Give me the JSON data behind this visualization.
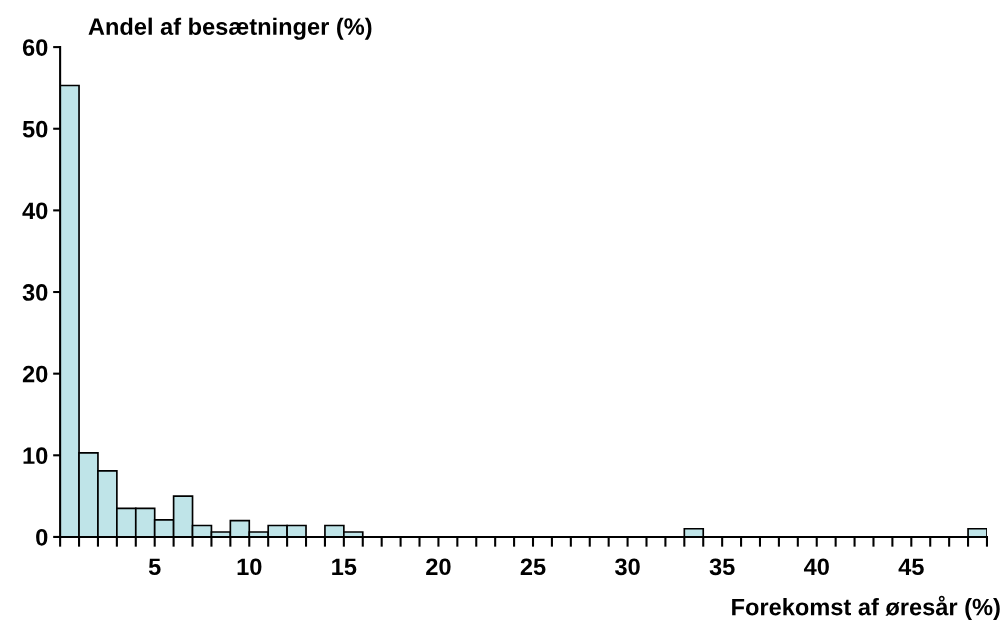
{
  "chart_data": {
    "type": "histogram",
    "xlabel": "Forekomst af øresår (%)",
    "ylabel": "Andel af besætninger (%)",
    "bins": [
      0,
      1,
      2,
      3,
      4,
      5,
      6,
      7,
      8,
      9,
      10,
      11,
      12,
      13,
      14,
      15,
      16,
      17,
      18,
      19,
      20,
      21,
      22,
      23,
      24,
      25,
      26,
      27,
      28,
      29,
      30,
      31,
      32,
      33,
      34,
      35,
      36,
      37,
      38,
      39,
      40,
      41,
      42,
      43,
      44,
      45,
      46,
      47,
      48,
      49
    ],
    "values": [
      55.3,
      10.3,
      8.1,
      3.5,
      3.5,
      2.1,
      5.0,
      1.4,
      0.6,
      2.0,
      0.6,
      1.4,
      1.4,
      0,
      1.4,
      0.6,
      0,
      0,
      0,
      0,
      0,
      0,
      0,
      0,
      0,
      0,
      0,
      0,
      0,
      0,
      0,
      0,
      0,
      1.0,
      0,
      0,
      0,
      0,
      0,
      0,
      0,
      0,
      0,
      0,
      0,
      0,
      0,
      0,
      1.0
    ],
    "color": "#bfe4e8",
    "xlim": [
      0,
      49
    ],
    "ylim": [
      0,
      60
    ],
    "yticks": [
      0,
      10,
      20,
      30,
      40,
      50,
      60
    ],
    "xticks": [
      {
        "value": 0,
        "label": null
      },
      {
        "value": 1,
        "label": null
      },
      {
        "value": 2,
        "label": null
      },
      {
        "value": 3,
        "label": null
      },
      {
        "value": 4,
        "label": null
      },
      5,
      {
        "value": 6,
        "label": null
      },
      {
        "value": 7,
        "label": null
      },
      {
        "value": 8,
        "label": null
      },
      {
        "value": 9,
        "label": null
      },
      10,
      {
        "value": 11,
        "label": null
      },
      {
        "value": 12,
        "label": null
      },
      {
        "value": 13,
        "label": null
      },
      {
        "value": 14,
        "label": null
      },
      15,
      {
        "value": 16,
        "label": null
      },
      {
        "value": 17,
        "label": null
      },
      {
        "value": 18,
        "label": null
      },
      {
        "value": 19,
        "label": null
      },
      20,
      {
        "value": 21,
        "label": null
      },
      {
        "value": 22,
        "label": null
      },
      {
        "value": 23,
        "label": null
      },
      {
        "value": 24,
        "label": null
      },
      25,
      {
        "value": 26,
        "label": null
      },
      {
        "value": 27,
        "label": null
      },
      {
        "value": 28,
        "label": null
      },
      {
        "value": 29,
        "label": null
      },
      30,
      {
        "value": 31,
        "label": null
      },
      {
        "value": 32,
        "label": null
      },
      {
        "value": 33,
        "label": null
      },
      {
        "value": 34,
        "label": null
      },
      35,
      {
        "value": 36,
        "label": null
      },
      {
        "value": 37,
        "label": null
      },
      {
        "value": 38,
        "label": null
      },
      {
        "value": 39,
        "label": null
      },
      40,
      {
        "value": 41,
        "label": null
      },
      {
        "value": 42,
        "label": null
      },
      {
        "value": 43,
        "label": null
      },
      {
        "value": 44,
        "label": null
      },
      45,
      {
        "value": 46,
        "label": null
      },
      {
        "value": 47,
        "label": null
      },
      {
        "value": 48,
        "label": null
      },
      {
        "value": 49,
        "label": null
      }
    ],
    "grid": false,
    "legend": false
  }
}
